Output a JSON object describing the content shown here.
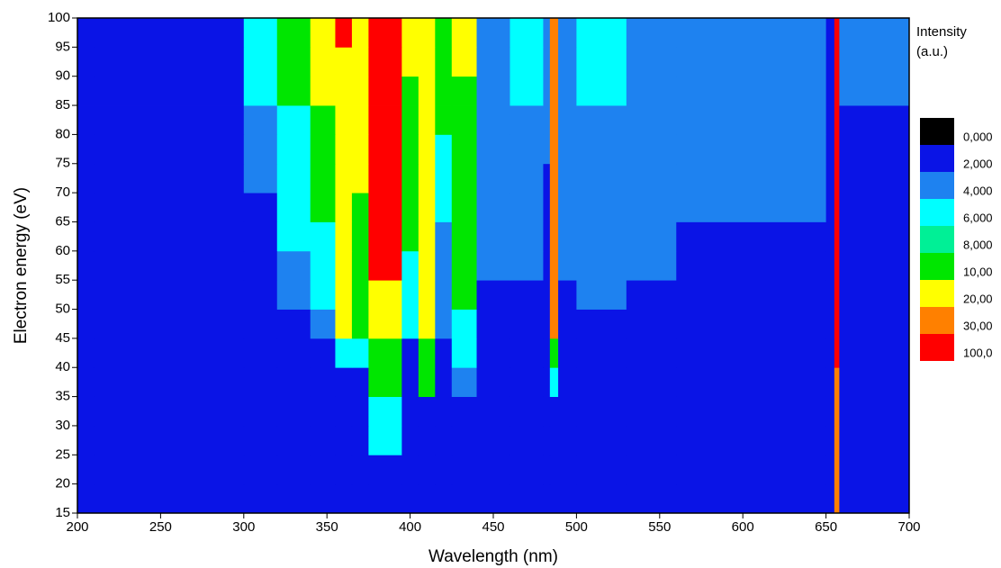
{
  "chart_data": {
    "type": "heatmap",
    "x_label": "Wavelength (nm)",
    "y_label": "Electron energy (eV)",
    "colorbar_title": [
      "Intensity",
      "(a.u.)"
    ],
    "xlim": [
      200,
      700
    ],
    "xticks": [
      200,
      250,
      300,
      350,
      400,
      450,
      500,
      550,
      600,
      650,
      700
    ],
    "ylim": [
      15,
      100
    ],
    "yticks": [
      15,
      20,
      25,
      30,
      35,
      40,
      45,
      50,
      55,
      60,
      65,
      70,
      75,
      80,
      85,
      90,
      95,
      100
    ],
    "levels": [
      {
        "value": 0,
        "label": "0,000"
      },
      {
        "value": 2,
        "label": "2,000"
      },
      {
        "value": 4,
        "label": "4,000"
      },
      {
        "value": 6,
        "label": "6,000"
      },
      {
        "value": 8,
        "label": "8,000"
      },
      {
        "value": 10,
        "label": "10,00"
      },
      {
        "value": 20,
        "label": "20,00"
      },
      {
        "value": 30,
        "label": "30,00"
      },
      {
        "value": 100,
        "label": "100,0"
      }
    ],
    "colors": [
      "#000000",
      "#0a14e6",
      "#1e82f0",
      "#00ffff",
      "#00f096",
      "#00e600",
      "#ffff00",
      "#ff8000",
      "#ff0000"
    ],
    "x_edges": [
      200,
      210,
      300,
      320,
      340,
      355,
      365,
      375,
      395,
      405,
      415,
      425,
      440,
      460,
      480,
      484,
      489,
      500,
      530,
      560,
      650,
      655,
      658,
      700
    ],
    "y_edges": [
      15,
      20,
      25,
      30,
      35,
      40,
      45,
      50,
      55,
      60,
      65,
      70,
      75,
      80,
      85,
      90,
      95,
      100
    ],
    "z": [
      [
        1,
        1,
        1,
        1,
        1,
        1,
        1,
        1,
        1,
        1,
        1,
        1,
        1,
        1,
        1,
        1,
        1,
        1,
        1,
        1,
        1,
        25,
        1
      ],
      [
        1,
        1,
        1,
        1,
        1,
        1,
        1,
        1,
        1,
        1,
        1,
        1,
        1,
        1,
        1,
        1,
        1,
        1,
        1,
        1,
        1,
        25,
        1
      ],
      [
        1,
        1,
        1,
        1,
        1,
        1,
        1,
        5,
        1,
        1,
        1,
        1,
        1,
        1,
        1,
        1,
        1,
        1,
        1,
        1,
        1,
        25,
        1
      ],
      [
        1,
        1,
        1,
        1,
        1,
        1,
        1,
        5,
        1,
        1,
        1,
        1,
        1,
        1,
        1,
        1,
        1,
        1,
        1,
        1,
        1,
        25,
        1
      ],
      [
        1,
        1,
        1,
        1,
        1,
        1,
        1,
        9,
        1,
        9,
        1,
        3,
        1,
        1,
        1,
        5,
        1,
        1,
        1,
        1,
        1,
        25,
        1
      ],
      [
        1,
        1,
        1,
        1,
        1,
        5,
        5,
        9,
        1,
        9,
        1,
        5,
        1,
        1,
        1,
        9,
        1,
        1,
        1,
        1,
        1,
        50,
        1
      ],
      [
        1,
        1,
        1,
        1,
        3,
        15,
        9,
        15,
        5,
        15,
        3,
        5,
        1,
        1,
        1,
        25,
        1,
        1,
        1,
        1,
        1,
        50,
        1
      ],
      [
        1,
        1,
        1,
        3,
        5,
        15,
        9,
        15,
        5,
        15,
        3,
        9,
        1,
        1,
        1,
        25,
        1,
        3,
        1,
        1,
        1,
        50,
        1
      ],
      [
        1,
        1,
        1,
        3,
        5,
        15,
        9,
        50,
        5,
        15,
        3,
        9,
        3,
        3,
        1,
        25,
        3,
        3,
        3,
        1,
        1,
        50,
        1
      ],
      [
        1,
        1,
        1,
        5,
        5,
        15,
        9,
        50,
        9,
        15,
        3,
        9,
        3,
        3,
        1,
        25,
        3,
        3,
        3,
        1,
        1,
        50,
        1
      ],
      [
        1,
        1,
        1,
        5,
        9,
        15,
        9,
        50,
        9,
        15,
        5,
        9,
        3,
        3,
        1,
        25,
        3,
        3,
        3,
        3,
        1,
        50,
        1
      ],
      [
        1,
        1,
        3,
        5,
        9,
        15,
        15,
        50,
        9,
        15,
        5,
        9,
        3,
        3,
        1,
        25,
        3,
        3,
        3,
        3,
        1,
        50,
        1
      ],
      [
        1,
        1,
        3,
        5,
        9,
        15,
        15,
        50,
        9,
        15,
        5,
        9,
        3,
        3,
        3,
        25,
        3,
        3,
        3,
        3,
        1,
        50,
        1
      ],
      [
        1,
        1,
        3,
        5,
        9,
        15,
        15,
        50,
        9,
        15,
        9,
        9,
        3,
        3,
        3,
        25,
        3,
        3,
        3,
        3,
        1,
        50,
        1
      ],
      [
        1,
        1,
        5,
        9,
        15,
        15,
        15,
        50,
        9,
        15,
        9,
        9,
        3,
        5,
        3,
        25,
        3,
        5,
        3,
        3,
        1,
        50,
        3
      ],
      [
        1,
        1,
        5,
        9,
        15,
        15,
        15,
        50,
        15,
        15,
        9,
        15,
        3,
        5,
        3,
        25,
        3,
        5,
        3,
        3,
        1,
        50,
        3
      ],
      [
        1,
        1,
        5,
        9,
        15,
        50,
        15,
        50,
        15,
        15,
        9,
        15,
        3,
        5,
        3,
        25,
        3,
        5,
        3,
        3,
        1,
        50,
        3
      ]
    ]
  }
}
